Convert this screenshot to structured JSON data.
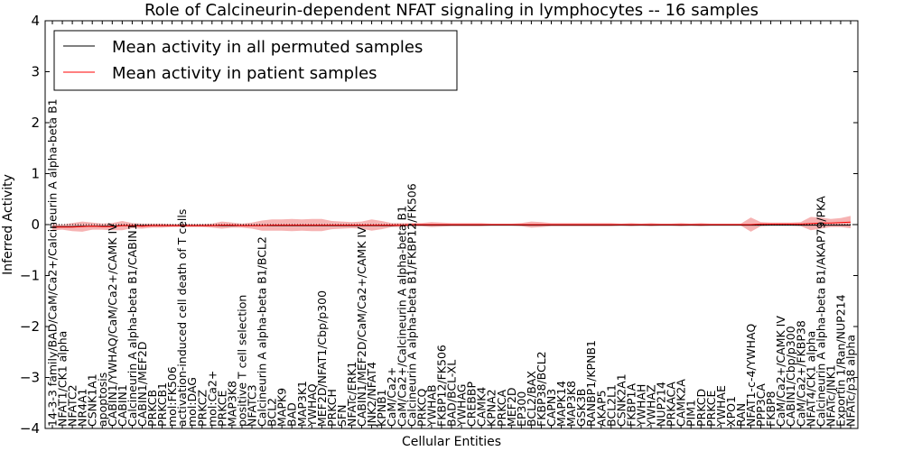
{
  "chart_data": {
    "type": "line",
    "title": "Role of Calcineurin-dependent NFAT signaling in lymphocytes -- 16 samples",
    "xlabel": "Cellular Entities",
    "ylabel": "Inferred Activity",
    "ylim": [
      -4,
      4
    ],
    "yticks": [
      -4,
      -3,
      -2,
      -1,
      0,
      1,
      2,
      3,
      4
    ],
    "legend_position": "top-left",
    "categories": [
      "14-3-3 family/BAD/CaM/Ca2+/Calcineurin A alpha-beta B1",
      "NFAT1/CK1 alpha",
      "NFATC2",
      "NR4A1",
      "CSNK1A1",
      "apoptosis",
      "CABIN1/YWHAQ/CaM/Ca2+/CAMK IV",
      "CABIN1",
      "Calcineurin A alpha-beta B1/CABIN1",
      "CABIN1/MEF2D",
      "PRKCB",
      "PRKCB1",
      "mol:FK506",
      "activation-induced cell death of T cells",
      "mol:DAG",
      "PRKCZ",
      "mol:Ca2+",
      "PRKCE",
      "MAP3K8",
      "positive T cell selection",
      "NFATC3",
      "Calcineurin A alpha-beta B1/BCL2",
      "BCL2",
      "MAPK9",
      "BAD",
      "MAP3K1",
      "YWHAQ",
      "MEF2D/NFAT1/Cbp/p300",
      "PRKCH",
      "SFN",
      "NFATc/ERK1",
      "CABIN1/MEF2D/CaM/Ca2+/CAMK IV",
      "JNK2/NFAT4",
      "KPNB1",
      "CaM/Ca2+",
      "CaM/Ca2+/Calcineurin A alpha-beta B1",
      "Calcineurin A alpha-beta B1/FKBP12/FK506",
      "PRKCQ",
      "YWHAB",
      "FKBP12/FK506",
      "BAD/BCL-XL",
      "YWHAG",
      "CREBBP",
      "CAMK4",
      "KPNA2",
      "PRKCA",
      "MEF2D",
      "EP300",
      "BCL2/BAX",
      "FKBP38/BCL2",
      "CAPN3",
      "MAPK14",
      "MAP3K8",
      "GSK3B",
      "RANBP1/KPNB1",
      "AKAP5",
      "BCL2L1",
      "CSNK2A1",
      "FKBP1A",
      "YWHAH",
      "YWHAZ",
      "NUP214",
      "PRKACA",
      "CAMK2A",
      "PIM1",
      "PRKCD",
      "PRKCE",
      "YWHAE",
      "XPO1",
      "RAN",
      "NFAT1-c-4/YWHAQ",
      "PPP3CA",
      "FKBP8",
      "CaM/Ca2+/CAMK IV",
      "CABIN1/Cbp/p300",
      "CaM/Ca2+/FKBP38",
      "NFAT4/CK1 alpha",
      "Calcineurin A alpha-beta B1/AKAP79/PKA",
      "NFATc/JNK1",
      "Exportin 1/Ran/NUP214",
      "NFATc/p38 alpha"
    ],
    "series": [
      {
        "name": "Mean activity in all permuted samples",
        "color": "#000000",
        "values": [
          -0.04,
          -0.04,
          -0.04,
          -0.03,
          -0.03,
          -0.03,
          -0.03,
          -0.02,
          -0.02,
          -0.02,
          -0.02,
          -0.02,
          -0.02,
          -0.02,
          -0.02,
          -0.02,
          -0.02,
          -0.02,
          -0.02,
          -0.02,
          -0.02,
          -0.02,
          -0.02,
          -0.02,
          -0.02,
          -0.02,
          -0.02,
          -0.02,
          -0.02,
          -0.02,
          -0.02,
          -0.02,
          -0.02,
          -0.02,
          -0.02,
          -0.01,
          -0.01,
          -0.01,
          -0.01,
          -0.01,
          -0.01,
          -0.01,
          -0.01,
          -0.01,
          -0.01,
          -0.01,
          -0.01,
          -0.01,
          -0.01,
          -0.01,
          -0.01,
          -0.01,
          -0.01,
          -0.01,
          -0.01,
          -0.01,
          -0.01,
          -0.01,
          -0.01,
          -0.01,
          -0.01,
          -0.01,
          -0.01,
          -0.01,
          -0.01,
          -0.01,
          -0.01,
          -0.01,
          -0.01,
          -0.01,
          -0.01,
          -0.01,
          -0.01,
          -0.01,
          -0.01,
          -0.01,
          -0.01,
          -0.01,
          -0.01,
          -0.01,
          -0.01
        ]
      },
      {
        "name": "Mean activity in patient samples",
        "color": "#ff0000",
        "values": [
          -0.05,
          -0.05,
          -0.05,
          -0.04,
          -0.03,
          -0.04,
          -0.04,
          -0.02,
          -0.02,
          -0.03,
          -0.02,
          -0.02,
          -0.02,
          -0.02,
          -0.02,
          -0.02,
          -0.02,
          -0.01,
          -0.01,
          -0.02,
          -0.02,
          -0.02,
          -0.01,
          -0.01,
          -0.01,
          -0.01,
          -0.01,
          -0.01,
          -0.01,
          -0.01,
          -0.01,
          -0.01,
          -0.01,
          -0.01,
          -0.01,
          -0.01,
          0.0,
          0.0,
          0.0,
          0.0,
          0.0,
          0.0,
          0.0,
          0.0,
          0.0,
          0.0,
          0.0,
          0.0,
          0.0,
          0.0,
          0.0,
          0.0,
          0.0,
          0.0,
          0.0,
          0.0,
          0.0,
          0.0,
          0.0,
          0.0,
          0.0,
          0.0,
          0.0,
          0.0,
          0.0,
          0.0,
          0.0,
          0.0,
          0.0,
          0.0,
          0.0,
          0.01,
          0.01,
          0.01,
          0.01,
          0.01,
          0.02,
          0.03,
          0.03,
          0.04,
          0.05
        ]
      }
    ],
    "band_halfwidth": [
      0.06,
      0.05,
      0.08,
      0.1,
      0.07,
      0.06,
      0.07,
      0.09,
      0.05,
      0.05,
      0.04,
      0.04,
      0.03,
      0.03,
      0.03,
      0.03,
      0.04,
      0.07,
      0.05,
      0.04,
      0.06,
      0.1,
      0.11,
      0.11,
      0.12,
      0.11,
      0.12,
      0.12,
      0.08,
      0.07,
      0.06,
      0.07,
      0.11,
      0.08,
      0.04,
      0.04,
      0.03,
      0.03,
      0.05,
      0.04,
      0.03,
      0.03,
      0.03,
      0.03,
      0.02,
      0.02,
      0.02,
      0.03,
      0.06,
      0.05,
      0.03,
      0.03,
      0.03,
      0.03,
      0.03,
      0.03,
      0.03,
      0.02,
      0.03,
      0.02,
      0.03,
      0.02,
      0.02,
      0.03,
      0.02,
      0.03,
      0.02,
      0.02,
      0.02,
      0.02,
      0.14,
      0.04,
      0.03,
      0.03,
      0.03,
      0.04,
      0.13,
      0.11,
      0.08,
      0.09,
      0.12
    ],
    "band_color": "#f08080"
  }
}
